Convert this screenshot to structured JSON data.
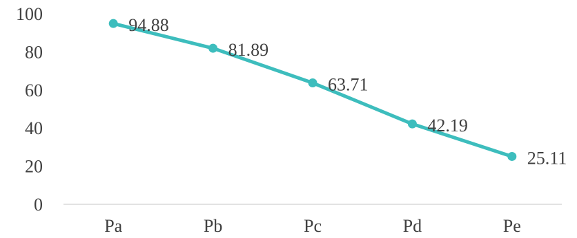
{
  "chart_data": {
    "type": "line",
    "title": "",
    "xlabel": "",
    "ylabel": "",
    "categories": [
      "Pa",
      "Pb",
      "Pc",
      "Pd",
      "Pe"
    ],
    "series": [
      {
        "values": [
          94.88,
          81.89,
          63.71,
          42.19,
          25.11
        ]
      }
    ],
    "data_labels": [
      "94.88",
      "81.89",
      "63.71",
      "42.19",
      "25.11"
    ],
    "y_ticks": [
      "0",
      "20",
      "40",
      "60",
      "80",
      "100"
    ],
    "ylim": [
      0,
      100
    ],
    "grid": false,
    "legend": "none",
    "colors": {
      "line": "#3dbdbd",
      "text": "#404040",
      "axis": "#d9d9d9"
    }
  }
}
